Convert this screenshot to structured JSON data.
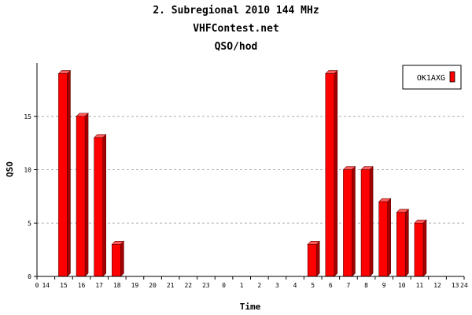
{
  "chart_data": {
    "type": "bar",
    "title_lines": [
      "2. Subregional 2010 144 MHz",
      "VHFContest.net",
      "QSO/hod"
    ],
    "xlabel": "Time",
    "ylabel": "QSO",
    "x_start_label": "0",
    "x_end_label": "24",
    "categories": [
      "14",
      "15",
      "16",
      "17",
      "18",
      "19",
      "20",
      "21",
      "22",
      "23",
      "0",
      "1",
      "2",
      "3",
      "4",
      "5",
      "6",
      "7",
      "8",
      "9",
      "10",
      "11",
      "12",
      "13"
    ],
    "series": [
      {
        "name": "OK1AXG",
        "color": "#ff0000",
        "values": [
          0,
          19,
          15,
          13,
          3,
          0,
          0,
          0,
          0,
          0,
          0,
          0,
          0,
          0,
          0,
          3,
          19,
          10,
          10,
          7,
          6,
          5,
          0,
          0
        ]
      }
    ],
    "ylim": [
      0,
      20
    ],
    "yticks": [
      0,
      5,
      10,
      15
    ],
    "grid": "horizontal-dashed",
    "legend_position": "top-right"
  }
}
